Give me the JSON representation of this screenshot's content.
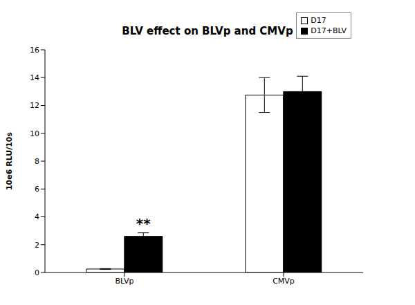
{
  "chart_data": {
    "type": "bar",
    "title": "BLV effect on BLVp and CMVp",
    "y_label": "10e6 RLU/10s",
    "categories": [
      "BLVp",
      "CMVp"
    ],
    "series": [
      {
        "name": "D17",
        "color": "#ffffff",
        "values": [
          0.25,
          12.75
        ],
        "errors": [
          0.03,
          1.25
        ]
      },
      {
        "name": "D17+BLV",
        "color": "#000000",
        "values": [
          2.6,
          13.0
        ],
        "errors": [
          0.25,
          1.1
        ]
      }
    ],
    "ylim": [
      0,
      16
    ],
    "yticks": [
      0,
      2,
      4,
      6,
      8,
      10,
      12,
      14,
      16
    ],
    "grid": false,
    "legend": "upper right",
    "annotations": [
      {
        "text": "**",
        "category": "BLVp",
        "series": "D17+BLV"
      }
    ]
  }
}
